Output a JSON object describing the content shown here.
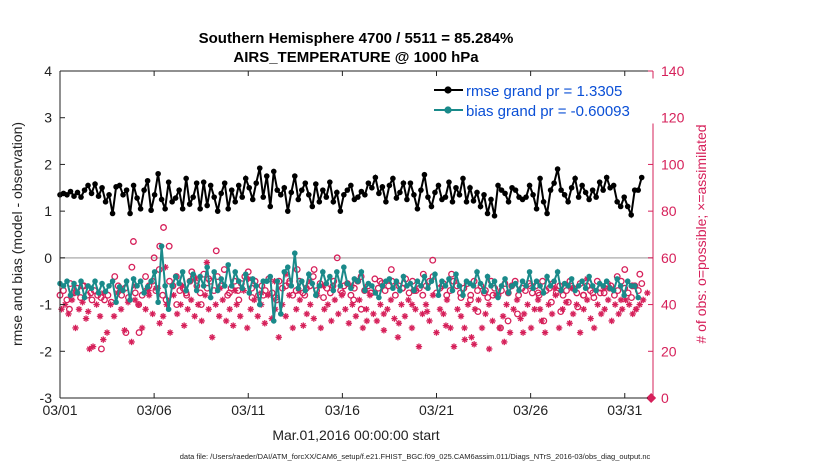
{
  "chart_data": {
    "type": "line",
    "title_line1": "Southern Hemisphere 4700 / 5511 = 85.284%",
    "title_line2": "AIRS_TEMPERATURE @ 1000 hPa",
    "xlabel": "Mar.01,2016 00:00:00 start",
    "ylabel_left": "rmse and bias (model - observation)",
    "ylabel_right": "# of obs: o=possible; ×=assimilated",
    "footer": "data file: /Users/raeder/DAI/ATM_forcXX/CAM6_setup/f.e21.FHIST_BGC.f09_025.CAM6assim.011/Diags_NTrS_2016-03/obs_diag_output.nc",
    "xlim": [
      0,
      31.5
    ],
    "ylim_left": [
      -3,
      4
    ],
    "ylim_right": [
      0,
      140
    ],
    "x_ticks": [
      0,
      5,
      10,
      15,
      20,
      25,
      30
    ],
    "x_tick_labels": [
      "03/01",
      "03/06",
      "03/11",
      "03/16",
      "03/21",
      "03/26",
      "03/31"
    ],
    "y_left_ticks": [
      -3,
      -2,
      -1,
      0,
      1,
      2,
      3,
      4
    ],
    "y_right_ticks": [
      0,
      20,
      40,
      60,
      80,
      100,
      120,
      140
    ],
    "zero_line": 0,
    "legend": [
      {
        "label": "rmse grand pr = 1.3305",
        "color": "#000000"
      },
      {
        "label": "bias grand pr = -0.60093",
        "color": "#1a8a8a"
      }
    ],
    "colors": {
      "rmse": "#000000",
      "bias": "#1a8a8a",
      "obs": "#d6205a",
      "legend_text": "#0a4fd6",
      "zero_line": "#b8b8b8"
    },
    "rmse": [
      1.35,
      1.38,
      1.35,
      1.42,
      1.32,
      1.4,
      1.3,
      1.45,
      1.55,
      1.38,
      1.58,
      1.32,
      1.5,
      1.2,
      1.35,
      0.95,
      1.52,
      1.55,
      1.35,
      1.45,
      0.95,
      1.55,
      1.28,
      1.05,
      1.45,
      1.65,
      1.02,
      1.35,
      1.8,
      1.25,
      1.05,
      1.62,
      1.2,
      1.28,
      1.45,
      1.05,
      1.7,
      1.15,
      1.3,
      1.6,
      1.05,
      1.62,
      1.12,
      1.55,
      1.3,
      1.0,
      1.38,
      1.6,
      1.05,
      1.45,
      1.2,
      1.55,
      1.3,
      1.7,
      1.5,
      1.25,
      1.6,
      1.92,
      1.3,
      1.75,
      1.1,
      1.85,
      1.45,
      1.35,
      1.5,
      1.0,
      1.4,
      1.75,
      1.25,
      1.45,
      1.6,
      1.35,
      1.1,
      1.58,
      1.2,
      1.45,
      1.3,
      1.62,
      1.2,
      1.4,
      1.0,
      1.35,
      1.45,
      1.55,
      1.25,
      1.3,
      1.42,
      1.35,
      1.6,
      1.5,
      1.72,
      1.38,
      1.52,
      1.2,
      1.55,
      1.7,
      1.28,
      1.4,
      1.6,
      1.25,
      1.6,
      1.35,
      1.05,
      1.45,
      1.78,
      1.3,
      1.1,
      1.4,
      1.55,
      1.25,
      1.3,
      1.62,
      1.2,
      1.5,
      1.35,
      1.7,
      1.2,
      1.5,
      1.22,
      1.4,
      1.1,
      1.35,
      0.95,
      1.25,
      0.9,
      1.55,
      1.45,
      1.38,
      1.2,
      1.5,
      1.45,
      1.3,
      1.25,
      1.3,
      1.55,
      1.35,
      1.05,
      1.7,
      1.2,
      0.95,
      1.45,
      1.6,
      1.9,
      1.45,
      1.35,
      1.2,
      1.5,
      1.7,
      1.3,
      1.55,
      1.4,
      1.25,
      1.45,
      1.3,
      1.62,
      1.45,
      1.72,
      1.5,
      1.55,
      1.2,
      1.1,
      1.3,
      1.1,
      0.92,
      1.45,
      1.45,
      1.72
    ],
    "bias": [
      -0.55,
      -0.6,
      -0.5,
      -0.8,
      -0.55,
      -0.75,
      -0.5,
      -0.85,
      -0.6,
      -0.65,
      -0.5,
      -0.75,
      -0.55,
      -0.72,
      -0.6,
      -0.5,
      -0.95,
      -0.62,
      -0.7,
      -0.5,
      -0.9,
      -0.45,
      -0.6,
      -0.5,
      -0.75,
      -0.62,
      -0.5,
      -0.3,
      -0.95,
      0.25,
      -0.6,
      -1.1,
      -0.6,
      -0.4,
      -0.55,
      -0.3,
      -0.7,
      -0.5,
      -0.35,
      -0.7,
      -0.4,
      -0.6,
      -0.2,
      -0.85,
      -0.3,
      -0.7,
      -0.45,
      -0.6,
      -0.15,
      -0.6,
      -0.3,
      -0.5,
      -0.65,
      -0.35,
      -0.75,
      -0.45,
      -0.6,
      -1.0,
      -0.5,
      -0.5,
      -0.4,
      -1.35,
      -0.5,
      -1.2,
      -0.3,
      -0.2,
      -0.6,
      0.1,
      -0.65,
      -0.5,
      -0.7,
      -0.35,
      -0.55,
      -0.8,
      -0.6,
      -0.3,
      -0.55,
      -0.4,
      -0.7,
      -0.3,
      -0.6,
      -0.2,
      -0.55,
      -0.65,
      -0.45,
      -0.5,
      -0.3,
      -0.7,
      -0.55,
      -0.6,
      -0.75,
      -0.85,
      -0.6,
      -0.5,
      -0.45,
      -0.65,
      -0.5,
      -0.7,
      -0.4,
      -0.6,
      -0.55,
      -0.7,
      -0.5,
      -0.6,
      -0.4,
      -0.65,
      -0.5,
      -0.35,
      -0.8,
      -0.5,
      -0.6,
      -0.45,
      -0.7,
      -0.35,
      -0.6,
      -0.8,
      -0.5,
      -0.55,
      -0.6,
      -0.3,
      -0.55,
      -0.72,
      -0.4,
      -0.6,
      -0.5,
      -0.85,
      -0.6,
      -0.45,
      -0.75,
      -0.6,
      -0.55,
      -0.7,
      -0.5,
      -0.6,
      -0.3,
      -0.65,
      -0.5,
      -0.6,
      -0.75,
      -0.4,
      -0.6,
      -0.5,
      -0.3,
      -0.7,
      -0.55,
      -0.6,
      -0.45,
      -0.7,
      -0.6,
      -0.5,
      -0.65,
      -0.4,
      -0.6,
      -0.7,
      -0.55,
      -0.6,
      -0.5,
      -0.65,
      -0.7,
      -0.45,
      -0.6,
      -0.8,
      -0.5,
      -0.6,
      -0.6,
      -0.85
    ],
    "obs_possible": [
      44,
      46,
      42,
      49,
      45,
      47,
      43,
      48,
      44,
      45,
      46,
      44,
      43,
      42,
      44,
      41,
      52,
      48,
      44,
      47,
      43,
      56,
      45,
      40,
      44,
      52,
      48,
      50,
      46,
      55,
      44,
      42,
      50,
      48,
      52,
      46,
      47,
      44,
      50,
      52,
      48,
      45,
      53,
      47,
      50,
      46,
      52,
      48,
      55,
      44,
      47,
      50,
      46,
      49,
      52,
      54,
      47,
      50,
      44,
      48,
      46,
      51,
      45,
      43,
      50,
      47,
      48,
      49,
      44,
      46,
      50,
      45,
      47,
      48,
      52,
      46,
      49,
      43,
      47,
      45,
      50,
      60,
      46,
      48,
      49,
      44,
      47,
      50,
      52,
      46,
      48,
      45,
      51,
      47,
      49,
      46,
      48,
      50,
      44,
      48,
      47,
      51,
      45,
      50,
      46,
      47,
      44,
      48,
      50,
      52,
      45,
      47,
      49,
      44,
      46,
      50,
      48,
      45,
      47,
      49,
      44,
      50,
      46,
      48,
      45,
      43,
      50,
      47,
      44,
      46,
      49,
      45,
      48,
      50,
      44,
      47,
      46,
      49,
      45,
      48,
      44,
      50,
      46,
      47,
      49,
      45,
      48,
      44,
      46,
      50,
      47,
      45,
      49,
      44,
      48,
      46,
      43,
      50,
      47,
      45,
      49,
      48,
      44,
      46,
      50,
      47,
      45,
      43,
      48,
      46,
      49
    ],
    "obs_possible_outliers": [
      [
        0.5,
        38
      ],
      [
        1.2,
        48
      ],
      [
        1.7,
        42
      ],
      [
        2.2,
        21
      ],
      [
        3.5,
        28
      ],
      [
        3.9,
        67
      ],
      [
        4.2,
        28
      ],
      [
        4.6,
        46
      ],
      [
        5.0,
        60
      ],
      [
        5.3,
        65
      ],
      [
        5.5,
        73
      ],
      [
        5.8,
        65
      ],
      [
        6.2,
        40
      ],
      [
        6.7,
        45
      ],
      [
        7.0,
        54
      ],
      [
        7.5,
        40
      ],
      [
        7.9,
        51
      ],
      [
        8.3,
        63
      ],
      [
        9.0,
        45
      ],
      [
        9.5,
        42
      ],
      [
        10.2,
        43
      ],
      [
        10.8,
        44
      ],
      [
        11.5,
        42
      ],
      [
        12.2,
        50
      ],
      [
        12.6,
        55
      ],
      [
        13.0,
        44
      ],
      [
        13.5,
        55
      ],
      [
        14.5,
        48
      ],
      [
        15.0,
        45
      ],
      [
        15.6,
        42
      ],
      [
        16.0,
        38
      ],
      [
        16.5,
        45
      ],
      [
        17.0,
        50
      ],
      [
        17.6,
        55
      ],
      [
        18.2,
        47
      ],
      [
        18.8,
        46
      ],
      [
        19.3,
        53
      ],
      [
        19.8,
        59
      ],
      [
        20.3,
        48
      ],
      [
        20.8,
        53
      ],
      [
        21.3,
        43
      ],
      [
        21.8,
        42
      ],
      [
        22.2,
        37
      ],
      [
        22.6,
        46
      ],
      [
        23.0,
        44
      ],
      [
        23.4,
        30
      ],
      [
        23.8,
        33
      ],
      [
        24.3,
        36
      ],
      [
        25.0,
        48
      ],
      [
        25.4,
        45
      ],
      [
        25.7,
        33
      ],
      [
        26.1,
        41
      ],
      [
        26.6,
        37
      ],
      [
        27.0,
        41
      ],
      [
        27.5,
        39
      ],
      [
        27.8,
        44
      ],
      [
        28.3,
        45
      ],
      [
        28.7,
        45
      ],
      [
        29.2,
        47
      ],
      [
        29.6,
        52
      ],
      [
        30.0,
        55
      ],
      [
        30.4,
        48
      ],
      [
        30.8,
        53
      ]
    ],
    "obs_assimilated": [
      38,
      40,
      36,
      42,
      30,
      38,
      41,
      34,
      21,
      22,
      40,
      35,
      45,
      28,
      40,
      35,
      45,
      38,
      29,
      41,
      24,
      42,
      40,
      30,
      38,
      44,
      36,
      47,
      32,
      35,
      40,
      28,
      44,
      36,
      40,
      31,
      38,
      42,
      35,
      40,
      33,
      44,
      38,
      26,
      40,
      35,
      42,
      33,
      38,
      31,
      40,
      35,
      46,
      30,
      38,
      42,
      35,
      40,
      32,
      44,
      34,
      38,
      26,
      40,
      35,
      44,
      30,
      38,
      42,
      31,
      36,
      40,
      34,
      44,
      30,
      38,
      40,
      33,
      42,
      36,
      44,
      38,
      32,
      40,
      35,
      42,
      30,
      38,
      44,
      36,
      33,
      40,
      29,
      38,
      42,
      34,
      26,
      40,
      35,
      42,
      30,
      38,
      22,
      36,
      40,
      33,
      44,
      28,
      38,
      36,
      42,
      30,
      22,
      38,
      35,
      30,
      40,
      26,
      38,
      42,
      30,
      36,
      40,
      33,
      44,
      30,
      35,
      40,
      28,
      38,
      42,
      34,
      36,
      40,
      30,
      38,
      42,
      33,
      28,
      40,
      36,
      44,
      30,
      38,
      41,
      32,
      36,
      40,
      28,
      38,
      42,
      34,
      30,
      40,
      36,
      38,
      42,
      33,
      40,
      36,
      38,
      42,
      40,
      36,
      38,
      40,
      42
    ],
    "obs_assimilated_outliers": [
      [
        0.8,
        45
      ],
      [
        1.5,
        37
      ],
      [
        2.3,
        25
      ],
      [
        3.2,
        46
      ],
      [
        4.0,
        48
      ],
      [
        4.7,
        46
      ],
      [
        5.2,
        47
      ],
      [
        5.6,
        56
      ],
      [
        6.5,
        48
      ],
      [
        7.2,
        51
      ],
      [
        7.8,
        58
      ],
      [
        8.5,
        47
      ],
      [
        9.3,
        46
      ],
      [
        10.0,
        51
      ],
      [
        10.7,
        45
      ],
      [
        11.4,
        50
      ],
      [
        12.0,
        53
      ],
      [
        12.7,
        46
      ],
      [
        13.3,
        50
      ],
      [
        14.0,
        48
      ],
      [
        15.5,
        48
      ],
      [
        16.3,
        33
      ],
      [
        17.2,
        36
      ],
      [
        18.0,
        32
      ],
      [
        18.7,
        40
      ],
      [
        19.5,
        37
      ],
      [
        20.5,
        31
      ],
      [
        21.5,
        25
      ],
      [
        22.0,
        23
      ],
      [
        22.8,
        21
      ],
      [
        23.6,
        24
      ],
      [
        24.6,
        28
      ],
      [
        25.5,
        38
      ],
      [
        26.3,
        47
      ],
      [
        27.2,
        47
      ],
      [
        28.0,
        51
      ],
      [
        28.9,
        47
      ],
      [
        29.8,
        42
      ],
      [
        30.6,
        38
      ],
      [
        31.2,
        45
      ]
    ],
    "special_marker": {
      "x": 31.4,
      "y_right": 0
    }
  }
}
